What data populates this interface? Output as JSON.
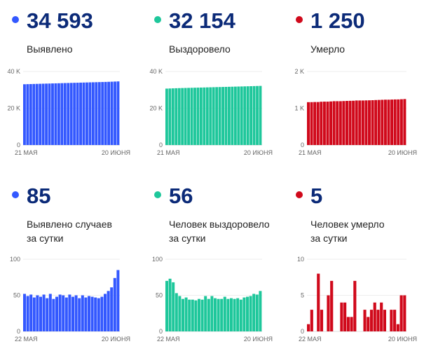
{
  "chart_data": [
    {
      "type": "bar",
      "id": "c0",
      "headline": "34 593",
      "label_lines": [
        "Выявлено"
      ],
      "color": "#3358ff",
      "ylim": [
        0,
        40000
      ],
      "yticks": [
        {
          "v": 0,
          "t": "0"
        },
        {
          "v": 20000,
          "t": "20 K"
        },
        {
          "v": 40000,
          "t": "40 K"
        }
      ],
      "xlabels": [
        "21 МАЯ",
        "20 ИЮНЯ"
      ],
      "values": [
        33048,
        33100,
        33149,
        33200,
        33247,
        33297,
        33345,
        33396,
        33442,
        33494,
        33539,
        33587,
        33638,
        33688,
        33735,
        33786,
        33834,
        33884,
        33930,
        33980,
        34027,
        34076,
        34124,
        34171,
        34217,
        34265,
        34317,
        34373,
        34434,
        34508,
        34593
      ]
    },
    {
      "type": "bar",
      "id": "c1",
      "headline": "32 154",
      "label_lines": [
        "Выздоровело"
      ],
      "color": "#1ec79b",
      "ylim": [
        0,
        40000
      ],
      "yticks": [
        {
          "v": 0,
          "t": "0"
        },
        {
          "v": 20000,
          "t": "20 K"
        },
        {
          "v": 40000,
          "t": "40 K"
        }
      ],
      "xlabels": [
        "21 МАЯ",
        "20 ИЮНЯ"
      ],
      "values": [
        30673,
        30743,
        30816,
        30884,
        30937,
        30986,
        31031,
        31078,
        31122,
        31166,
        31209,
        31254,
        31298,
        31347,
        31392,
        31441,
        31487,
        31532,
        31577,
        31625,
        31670,
        31716,
        31761,
        31807,
        31851,
        31898,
        31946,
        31995,
        32047,
        32098,
        32154
      ]
    },
    {
      "type": "bar",
      "id": "c2",
      "headline": "1 250",
      "label_lines": [
        "Умерло"
      ],
      "color": "#d0091b",
      "ylim": [
        0,
        2000
      ],
      "yticks": [
        {
          "v": 0,
          "t": "0"
        },
        {
          "v": 1000,
          "t": "1 K"
        },
        {
          "v": 2000,
          "t": "2 K"
        }
      ],
      "xlabels": [
        "21 МАЯ",
        "20 ИЮНЯ"
      ],
      "values": [
        1165,
        1166,
        1169,
        1169,
        1177,
        1180,
        1180,
        1185,
        1192,
        1192,
        1192,
        1196,
        1200,
        1202,
        1204,
        1211,
        1211,
        1211,
        1214,
        1216,
        1219,
        1223,
        1226,
        1230,
        1233,
        1233,
        1236,
        1239,
        1240,
        1245,
        1250
      ]
    },
    {
      "type": "bar",
      "id": "c3",
      "headline": "85",
      "label_lines": [
        "Выявлено случаев",
        "за сутки"
      ],
      "color": "#3358ff",
      "ylim": [
        0,
        100
      ],
      "yticks": [
        {
          "v": 0,
          "t": "0"
        },
        {
          "v": 50,
          "t": "50"
        },
        {
          "v": 100,
          "t": "100"
        }
      ],
      "xlabels": [
        "22 МАЯ",
        "20 ИЮНЯ"
      ],
      "values": [
        52,
        49,
        51,
        47,
        50,
        48,
        51,
        46,
        52,
        45,
        48,
        51,
        50,
        47,
        51,
        48,
        50,
        46,
        50,
        47,
        49,
        48,
        47,
        46,
        48,
        52,
        56,
        61,
        74,
        85
      ]
    },
    {
      "type": "bar",
      "id": "c4",
      "headline": "56",
      "label_lines": [
        "Человек выздоровело",
        "за сутки"
      ],
      "color": "#1ec79b",
      "ylim": [
        0,
        100
      ],
      "yticks": [
        {
          "v": 0,
          "t": "0"
        },
        {
          "v": 50,
          "t": "50"
        },
        {
          "v": 100,
          "t": "100"
        }
      ],
      "xlabels": [
        "22 МАЯ",
        "20 ИЮНЯ"
      ],
      "values": [
        70,
        73,
        68,
        53,
        49,
        45,
        47,
        44,
        44,
        43,
        45,
        44,
        49,
        45,
        49,
        46,
        45,
        45,
        48,
        45,
        46,
        45,
        46,
        44,
        47,
        48,
        49,
        52,
        51,
        56
      ]
    },
    {
      "type": "bar",
      "id": "c5",
      "headline": "5",
      "label_lines": [
        "Человек умерло",
        "за сутки"
      ],
      "color": "#d0091b",
      "ylim": [
        0,
        10
      ],
      "yticks": [
        {
          "v": 0,
          "t": "0"
        },
        {
          "v": 5,
          "t": "5"
        },
        {
          "v": 10,
          "t": "10"
        }
      ],
      "xlabels": [
        "22 МАЯ",
        "20 ИЮНЯ"
      ],
      "values": [
        1,
        3,
        0,
        8,
        3,
        0,
        5,
        7,
        0,
        0,
        4,
        4,
        2,
        2,
        7,
        0,
        0,
        3,
        2,
        3,
        4,
        3,
        4,
        3,
        0,
        3,
        3,
        1,
        5,
        5
      ]
    }
  ]
}
